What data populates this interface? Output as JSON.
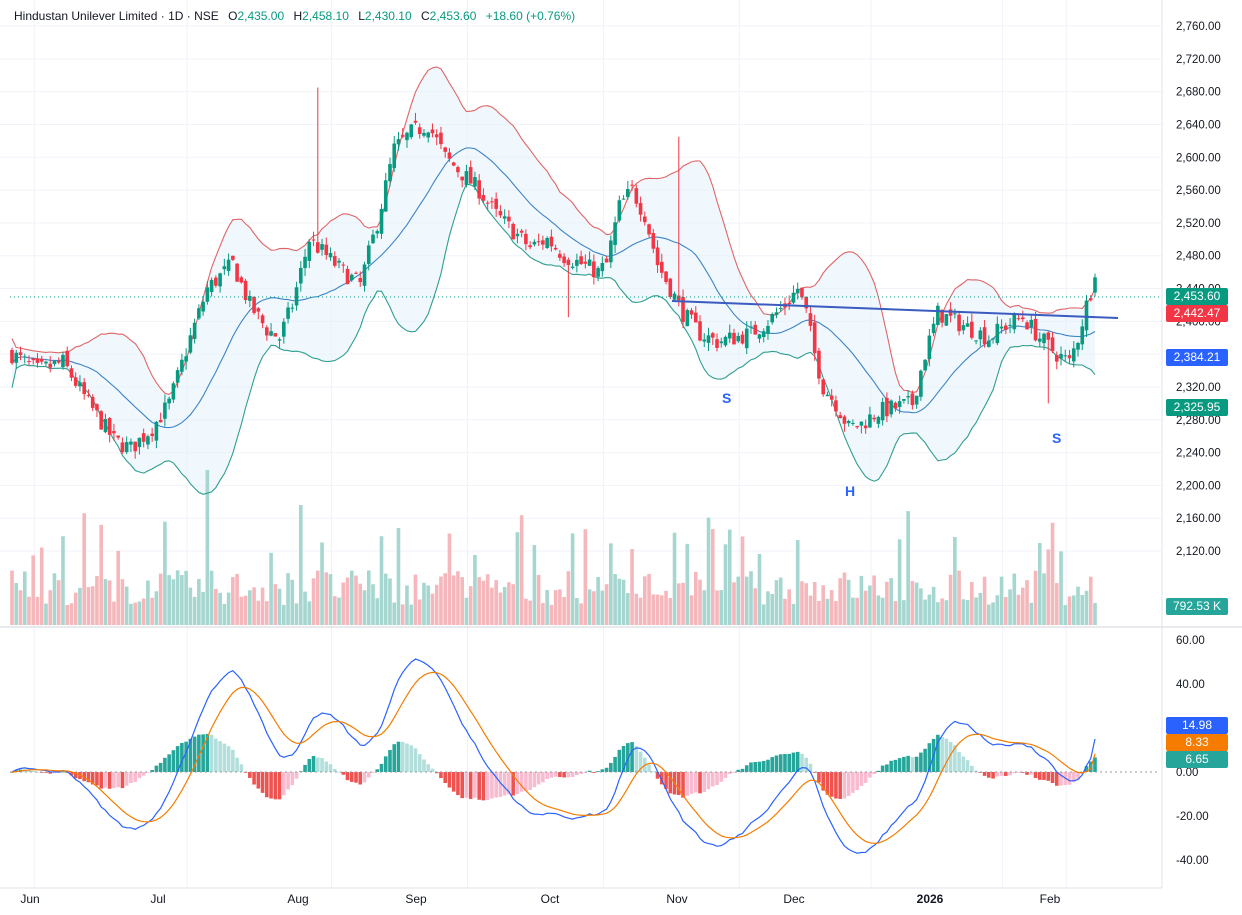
{
  "legend": {
    "symbol": "Hindustan Unilever Limited · 1D · NSE",
    "open_key": "O",
    "open": "2,435.00",
    "high_key": "H",
    "high": "2,458.10",
    "low_key": "L",
    "low": "2,430.10",
    "close_key": "C",
    "close": "2,453.60",
    "change": "+18.60 (+0.76%)"
  },
  "badges": {
    "price": "2,453.60",
    "bb_upper": "2,442.47",
    "bb_basis": "2,384.21",
    "bb_lower": "2,325.95",
    "volume": "792.53 K",
    "macd": "14.98",
    "signal": "8.33",
    "histogram": "6.65"
  },
  "colors": {
    "up": "#089981",
    "down": "#f23645",
    "bb_upper": "#e06666",
    "bb_basis": "#3d85c6",
    "bb_lower": "#2f9e8f",
    "macd": "#2962ff",
    "signal": "#f57c00",
    "trendline": "#3a5bbf"
  },
  "annotations": [
    "S",
    "H",
    "S"
  ],
  "chart_data": {
    "type": "candlestick",
    "price_axis": {
      "ticks": [
        "2,760.00",
        "2,720.00",
        "2,680.00",
        "2,640.00",
        "2,600.00",
        "2,560.00",
        "2,520.00",
        "2,480.00",
        "2,440.00",
        "2,400.00",
        "2,360.00",
        "2,320.00",
        "2,280.00",
        "2,240.00",
        "2,200.00",
        "2,160.00",
        "2,120.00"
      ]
    },
    "macd_axis": {
      "ticks": [
        "60.00",
        "40.00",
        "20.00",
        "0.00",
        "-20.00",
        "-40.00"
      ]
    },
    "x_axis": {
      "labels": [
        "Jun",
        "Jul",
        "Aug",
        "Sep",
        "Oct",
        "Nov",
        "Dec",
        "2026",
        "Feb"
      ],
      "bold": [
        "2026"
      ]
    },
    "last_bar": {
      "open": 2435.0,
      "high": 2458.1,
      "low": 2430.1,
      "close": 2453.6,
      "volume_k": 792.53
    },
    "indicators": {
      "bb_upper": 2442.47,
      "bb_basis": 2384.21,
      "bb_lower": 2325.95,
      "macd": 14.98,
      "signal": 8.33,
      "hist": 6.65
    },
    "close_path": [
      [
        0,
        2360
      ],
      [
        6,
        2340
      ],
      [
        12,
        2350
      ],
      [
        18,
        2300
      ],
      [
        24,
        2255
      ],
      [
        28,
        2245
      ],
      [
        33,
        2270
      ],
      [
        37,
        2300
      ],
      [
        42,
        2380
      ],
      [
        46,
        2440
      ],
      [
        52,
        2470
      ],
      [
        56,
        2420
      ],
      [
        60,
        2390
      ],
      [
        63,
        2380
      ],
      [
        66,
        2420
      ],
      [
        70,
        2500
      ],
      [
        74,
        2480
      ],
      [
        78,
        2460
      ],
      [
        82,
        2445
      ],
      [
        86,
        2520
      ],
      [
        90,
        2610
      ],
      [
        94,
        2630
      ],
      [
        98,
        2640
      ],
      [
        102,
        2600
      ],
      [
        106,
        2580
      ],
      [
        110,
        2560
      ],
      [
        114,
        2530
      ],
      [
        118,
        2510
      ],
      [
        122,
        2490
      ],
      [
        126,
        2500
      ],
      [
        130,
        2480
      ],
      [
        134,
        2470
      ],
      [
        138,
        2460
      ],
      [
        140,
        2470
      ],
      [
        143,
        2540
      ],
      [
        146,
        2560
      ],
      [
        149,
        2530
      ],
      [
        152,
        2470
      ],
      [
        155,
        2440
      ],
      [
        158,
        2410
      ],
      [
        162,
        2385
      ],
      [
        166,
        2375
      ],
      [
        170,
        2380
      ],
      [
        174,
        2385
      ],
      [
        178,
        2400
      ],
      [
        182,
        2420
      ],
      [
        185,
        2440
      ],
      [
        187,
        2410
      ],
      [
        189,
        2360
      ],
      [
        191,
        2320
      ],
      [
        194,
        2300
      ],
      [
        197,
        2270
      ],
      [
        200,
        2275
      ],
      [
        204,
        2290
      ],
      [
        208,
        2295
      ],
      [
        212,
        2300
      ],
      [
        215,
        2360
      ],
      [
        218,
        2410
      ],
      [
        222,
        2400
      ],
      [
        226,
        2390
      ],
      [
        230,
        2380
      ],
      [
        234,
        2395
      ],
      [
        238,
        2405
      ],
      [
        242,
        2380
      ],
      [
        246,
        2360
      ],
      [
        249,
        2350
      ],
      [
        251,
        2380
      ],
      [
        253,
        2420
      ],
      [
        255,
        2453.6
      ]
    ],
    "n_bars": 256
  }
}
